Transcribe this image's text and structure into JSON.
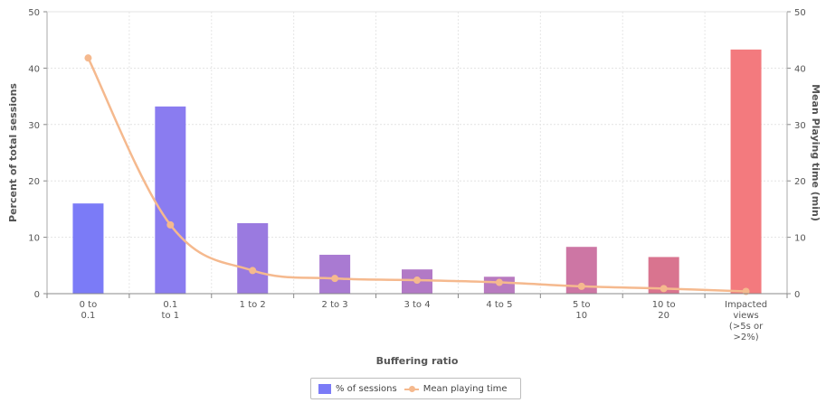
{
  "chart_data": {
    "type": "bar",
    "categories": [
      [
        "0 to",
        "0.1"
      ],
      [
        "0.1",
        "to 1"
      ],
      [
        "1 to 2"
      ],
      [
        "2 to 3"
      ],
      [
        "3 to 4"
      ],
      [
        "4 to 5"
      ],
      [
        "5 to",
        "10"
      ],
      [
        "10 to",
        "20"
      ],
      [
        "Impacted",
        "views",
        "(>5s or",
        ">2%)"
      ]
    ],
    "series": [
      {
        "name": "% of sessions",
        "type": "bar",
        "axis": "left",
        "values": [
          16,
          33.2,
          12.5,
          6.9,
          4.3,
          3.0,
          8.3,
          6.5,
          43.3
        ],
        "colors": [
          "#7b7bf7",
          "#8a7cf0",
          "#9a7ae0",
          "#a97ad2",
          "#b279c6",
          "#b87ac0",
          "#cd76a4",
          "#d9748f",
          "#f37a7e"
        ]
      },
      {
        "name": "Mean playing time",
        "type": "line",
        "axis": "right",
        "values": [
          41.8,
          12.2,
          4.1,
          2.7,
          2.4,
          2.0,
          1.3,
          0.9,
          0.4
        ],
        "color": "#f5b98e"
      }
    ],
    "xlabel": "Buffering ratio",
    "ylabel": "Percent of total sessions",
    "y2label": "Mean Playing time (min)",
    "ylim": [
      0,
      50
    ],
    "y2lim": [
      0,
      50
    ],
    "yticks": [
      0,
      10,
      20,
      30,
      40,
      50
    ],
    "grid": true,
    "legend_position": "bottom-center"
  },
  "legend": {
    "sessions_label": "% of sessions",
    "playing_label": "Mean playing time",
    "bar_color": "#7b7bf7",
    "line_color": "#f5b98e"
  }
}
